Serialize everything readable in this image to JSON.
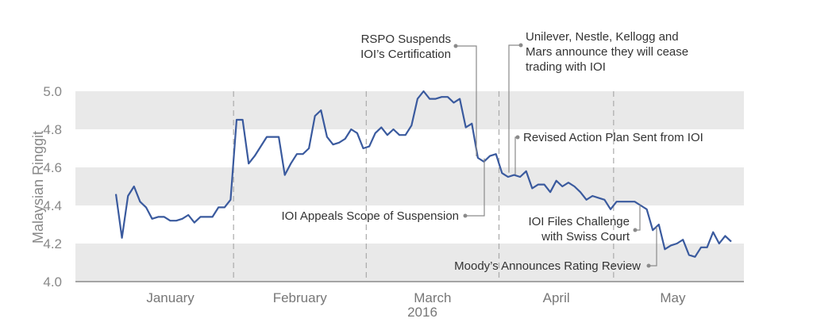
{
  "chart_data": {
    "type": "line",
    "ylabel": "Malaysian Ringgit",
    "ylim": [
      4.0,
      5.0
    ],
    "yticks": [
      "4.0",
      "4.2",
      "4.4",
      "4.6",
      "4.8",
      "5.0"
    ],
    "grid": "alternating horizontal bands",
    "months": [
      "January",
      "February",
      "March",
      "April",
      "May"
    ],
    "year_label": "2016",
    "series": [
      {
        "color": "#3a5a9e",
        "values": [
          4.46,
          4.23,
          4.45,
          4.5,
          4.42,
          4.39,
          4.33,
          4.34,
          4.34,
          4.32,
          4.32,
          4.33,
          4.35,
          4.31,
          4.34,
          4.34,
          4.34,
          4.39,
          4.39,
          4.43,
          4.85,
          4.85,
          4.62,
          4.66,
          4.71,
          4.76,
          4.76,
          4.76,
          4.56,
          4.62,
          4.67,
          4.67,
          4.7,
          4.87,
          4.9,
          4.76,
          4.72,
          4.73,
          4.75,
          4.8,
          4.78,
          4.7,
          4.71,
          4.78,
          4.81,
          4.77,
          4.8,
          4.77,
          4.77,
          4.82,
          4.96,
          5.0,
          4.96,
          4.96,
          4.97,
          4.97,
          4.94,
          4.96,
          4.81,
          4.83,
          4.65,
          4.63,
          4.66,
          4.67,
          4.57,
          4.55,
          4.56,
          4.55,
          4.58,
          4.49,
          4.51,
          4.51,
          4.47,
          4.53,
          4.5,
          4.52,
          4.5,
          4.47,
          4.43,
          4.45,
          4.44,
          4.43,
          4.38,
          4.42,
          4.42,
          4.42,
          4.42,
          4.4,
          4.38,
          4.27,
          4.3,
          4.17,
          4.19,
          4.2,
          4.22,
          4.14,
          4.13,
          4.18,
          4.18,
          4.26,
          4.2,
          4.24,
          4.21
        ]
      }
    ],
    "month_boundaries_after_index": [
      19,
      41,
      63,
      82
    ],
    "annotations": [
      {
        "lines": [
          "RSPO Suspends",
          "IOI’s Certification"
        ],
        "at_index": 60
      },
      {
        "lines": [
          "Unilever, Nestle, Kellogg and",
          "Mars announce they will cease",
          "trading with IOI"
        ],
        "at_index": 66
      },
      {
        "lines": [
          "Revised Action Plan Sent from IOI"
        ],
        "at_index": 67
      },
      {
        "lines": [
          "IOI Appeals Scope of Suspension"
        ],
        "at_index": 62
      },
      {
        "lines": [
          "IOI Files Challenge",
          "with Swiss Court"
        ],
        "at_index": 85
      },
      {
        "lines": [
          "Moody’s Announces Rating Review"
        ],
        "at_index": 90
      }
    ]
  }
}
